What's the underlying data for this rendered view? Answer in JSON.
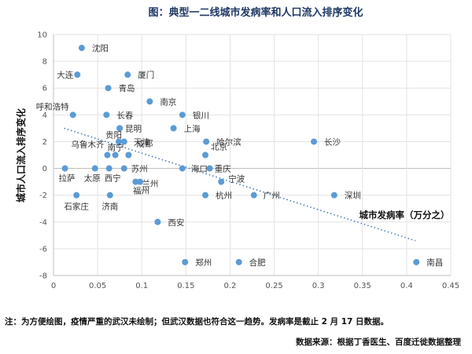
{
  "chart_data": {
    "type": "scatter",
    "title": "图：典型一二线城市发病率和人口流入排序变化",
    "xlabel": "城市发病率（万分之）",
    "ylabel": "城市人口流入排序变化",
    "xlim": [
      0,
      0.45
    ],
    "ylim": [
      -8,
      10
    ],
    "xticks": [
      "0",
      "0.05",
      "0.1",
      "0.15",
      "0.2",
      "0.25",
      "0.3",
      "0.35",
      "0.4",
      "0.45"
    ],
    "yticks": [
      "-8",
      "-6",
      "-4",
      "-2",
      "0",
      "2",
      "4",
      "6",
      "8",
      "10"
    ],
    "trendline": {
      "style": "dotted linear",
      "x": [
        0.012,
        0.41
      ],
      "y": [
        3.0,
        -5.4
      ]
    },
    "points": [
      {
        "name": "沈阳",
        "x": 0.032,
        "y": 9
      },
      {
        "name": "大连",
        "x": 0.027,
        "y": 7
      },
      {
        "name": "厦门",
        "x": 0.084,
        "y": 7
      },
      {
        "name": "青岛",
        "x": 0.062,
        "y": 6
      },
      {
        "name": "南京",
        "x": 0.109,
        "y": 5
      },
      {
        "name": "呼和浩特",
        "x": 0.022,
        "y": 4
      },
      {
        "name": "长春",
        "x": 0.06,
        "y": 4
      },
      {
        "name": "银川",
        "x": 0.146,
        "y": 4
      },
      {
        "name": "昆明",
        "x": 0.075,
        "y": 3
      },
      {
        "name": "上海",
        "x": 0.136,
        "y": 3
      },
      {
        "name": "贵阳",
        "x": 0.074,
        "y": 2
      },
      {
        "name": "天津",
        "x": 0.08,
        "y": 2
      },
      {
        "name": "哈尔滨",
        "x": 0.173,
        "y": 2
      },
      {
        "name": "长沙",
        "x": 0.295,
        "y": 2
      },
      {
        "name": "乌鲁木齐",
        "x": 0.061,
        "y": 1
      },
      {
        "name": "南宁",
        "x": 0.07,
        "y": 1
      },
      {
        "name": "成都",
        "x": 0.085,
        "y": 1
      },
      {
        "name": "北京",
        "x": 0.172,
        "y": 1
      },
      {
        "name": "拉萨",
        "x": 0.013,
        "y": 0
      },
      {
        "name": "太原",
        "x": 0.047,
        "y": 0
      },
      {
        "name": "西宁",
        "x": 0.063,
        "y": 0
      },
      {
        "name": "苏州",
        "x": 0.08,
        "y": 0
      },
      {
        "name": "海口",
        "x": 0.146,
        "y": 0
      },
      {
        "name": "重庆",
        "x": 0.177,
        "y": 0
      },
      {
        "name": "兰州",
        "x": 0.093,
        "y": -1
      },
      {
        "name": "福州",
        "x": 0.098,
        "y": -1
      },
      {
        "name": "宁波",
        "x": 0.19,
        "y": -1
      },
      {
        "name": "石家庄",
        "x": 0.026,
        "y": -2
      },
      {
        "name": "济南",
        "x": 0.064,
        "y": -2
      },
      {
        "name": "杭州",
        "x": 0.172,
        "y": -2
      },
      {
        "name": "广州",
        "x": 0.227,
        "y": -2
      },
      {
        "name": "深圳",
        "x": 0.318,
        "y": -2
      },
      {
        "name": "西安",
        "x": 0.118,
        "y": -4
      },
      {
        "name": "郑州",
        "x": 0.149,
        "y": -7
      },
      {
        "name": "合肥",
        "x": 0.21,
        "y": -7
      },
      {
        "name": "南昌",
        "x": 0.411,
        "y": -7
      }
    ]
  },
  "footer": {
    "note": "注：为方便绘图，疫情严重的武汉未绘制；但武汉数据也符合这一趋势。发病率是截止 2 月 17 日数据。",
    "source": "数据来源：根据丁香医生、百度迁徙数据整理"
  }
}
